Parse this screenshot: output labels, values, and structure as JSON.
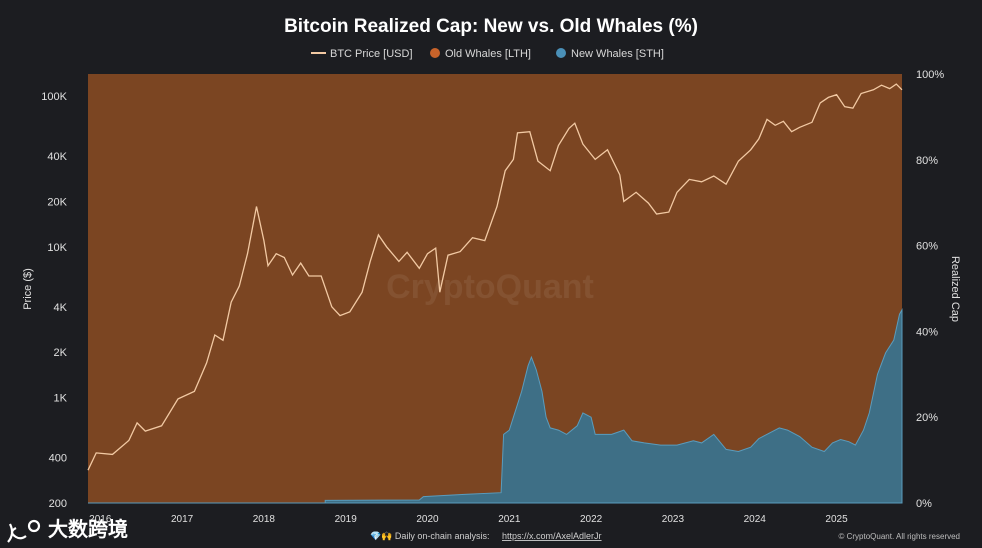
{
  "chart_data": {
    "type": "area",
    "title": "Bitcoin Realized Cap: New vs. Old Whales (%)",
    "legend": [
      {
        "label": "BTC Price [USD]",
        "color": "#f2c9a3",
        "kind": "line"
      },
      {
        "label": "Old Whales [LTH]",
        "color": "#c8632a",
        "kind": "dot"
      },
      {
        "label": "New Whales [STH]",
        "color": "#4a90b8",
        "kind": "dot"
      }
    ],
    "xlabel": "",
    "x_ticks": [
      "2016",
      "2017",
      "2018",
      "2019",
      "2020",
      "2021",
      "2022",
      "2023",
      "2024",
      "2025"
    ],
    "x_range": [
      2015.9,
      2025.85
    ],
    "y_left": {
      "label": "Price ($)",
      "scale": "log",
      "range": [
        200,
        140000
      ],
      "ticks": [
        {
          "v": 200,
          "label": "200"
        },
        {
          "v": 400,
          "label": "400"
        },
        {
          "v": 1000,
          "label": "1K"
        },
        {
          "v": 2000,
          "label": "2K"
        },
        {
          "v": 4000,
          "label": "4K"
        },
        {
          "v": 10000,
          "label": "10K"
        },
        {
          "v": 20000,
          "label": "20K"
        },
        {
          "v": 40000,
          "label": "40K"
        },
        {
          "v": 100000,
          "label": "100K"
        }
      ]
    },
    "y_right": {
      "label": "Realized Cap",
      "range": [
        0,
        100
      ],
      "ticks": [
        {
          "v": 0,
          "label": "0%"
        },
        {
          "v": 20,
          "label": "20%"
        },
        {
          "v": 40,
          "label": "40%"
        },
        {
          "v": 60,
          "label": "60%"
        },
        {
          "v": 80,
          "label": "80%"
        },
        {
          "v": 100,
          "label": "100%"
        }
      ]
    },
    "series": [
      {
        "name": "BTC Price [USD]",
        "axis": "left",
        "points": [
          [
            2015.9,
            330
          ],
          [
            2016.0,
            430
          ],
          [
            2016.2,
            420
          ],
          [
            2016.4,
            520
          ],
          [
            2016.5,
            680
          ],
          [
            2016.6,
            600
          ],
          [
            2016.8,
            650
          ],
          [
            2017.0,
            980
          ],
          [
            2017.2,
            1100
          ],
          [
            2017.35,
            1700
          ],
          [
            2017.45,
            2600
          ],
          [
            2017.55,
            2400
          ],
          [
            2017.65,
            4300
          ],
          [
            2017.75,
            5500
          ],
          [
            2017.85,
            9000
          ],
          [
            2017.96,
            18500
          ],
          [
            2018.05,
            11000
          ],
          [
            2018.1,
            7500
          ],
          [
            2018.2,
            9000
          ],
          [
            2018.3,
            8500
          ],
          [
            2018.4,
            6500
          ],
          [
            2018.5,
            7800
          ],
          [
            2018.6,
            6400
          ],
          [
            2018.75,
            6400
          ],
          [
            2018.88,
            4000
          ],
          [
            2018.98,
            3500
          ],
          [
            2019.1,
            3700
          ],
          [
            2019.25,
            5000
          ],
          [
            2019.35,
            8000
          ],
          [
            2019.45,
            12000
          ],
          [
            2019.55,
            10000
          ],
          [
            2019.7,
            8000
          ],
          [
            2019.8,
            9200
          ],
          [
            2019.95,
            7200
          ],
          [
            2020.05,
            9000
          ],
          [
            2020.15,
            9800
          ],
          [
            2020.2,
            5000
          ],
          [
            2020.3,
            8800
          ],
          [
            2020.45,
            9300
          ],
          [
            2020.6,
            11500
          ],
          [
            2020.75,
            11000
          ],
          [
            2020.9,
            18500
          ],
          [
            2021.0,
            32000
          ],
          [
            2021.1,
            38000
          ],
          [
            2021.15,
            57000
          ],
          [
            2021.3,
            58000
          ],
          [
            2021.4,
            37000
          ],
          [
            2021.55,
            32000
          ],
          [
            2021.65,
            47000
          ],
          [
            2021.78,
            61000
          ],
          [
            2021.85,
            66000
          ],
          [
            2021.95,
            48000
          ],
          [
            2022.1,
            38000
          ],
          [
            2022.25,
            44000
          ],
          [
            2022.4,
            30000
          ],
          [
            2022.45,
            20000
          ],
          [
            2022.6,
            23000
          ],
          [
            2022.75,
            19500
          ],
          [
            2022.85,
            16500
          ],
          [
            2023.0,
            17000
          ],
          [
            2023.1,
            23000
          ],
          [
            2023.25,
            28000
          ],
          [
            2023.4,
            27000
          ],
          [
            2023.55,
            29500
          ],
          [
            2023.7,
            26000
          ],
          [
            2023.85,
            37000
          ],
          [
            2024.0,
            44000
          ],
          [
            2024.1,
            52000
          ],
          [
            2024.2,
            70000
          ],
          [
            2024.3,
            64000
          ],
          [
            2024.4,
            68000
          ],
          [
            2024.5,
            58000
          ],
          [
            2024.6,
            62000
          ],
          [
            2024.75,
            67000
          ],
          [
            2024.85,
            90000
          ],
          [
            2024.95,
            98000
          ],
          [
            2025.05,
            102000
          ],
          [
            2025.15,
            85000
          ],
          [
            2025.25,
            83000
          ],
          [
            2025.35,
            104000
          ],
          [
            2025.5,
            110000
          ],
          [
            2025.6,
            118000
          ],
          [
            2025.7,
            112000
          ],
          [
            2025.78,
            120000
          ],
          [
            2025.85,
            110000
          ]
        ]
      },
      {
        "name": "Old Whales [LTH]",
        "axis": "right",
        "note": "complement of New Whales share (fills area above)"
      },
      {
        "name": "New Whales [STH]",
        "axis": "right",
        "points": [
          [
            2015.9,
            0
          ],
          [
            2018.8,
            0
          ],
          [
            2018.8,
            0.6
          ],
          [
            2019.95,
            0.7
          ],
          [
            2020.0,
            1.5
          ],
          [
            2020.5,
            2.0
          ],
          [
            2020.95,
            2.4
          ],
          [
            2020.98,
            16
          ],
          [
            2021.05,
            17
          ],
          [
            2021.1,
            20
          ],
          [
            2021.2,
            26
          ],
          [
            2021.28,
            32
          ],
          [
            2021.32,
            34
          ],
          [
            2021.38,
            31
          ],
          [
            2021.45,
            26
          ],
          [
            2021.5,
            20
          ],
          [
            2021.55,
            17.5
          ],
          [
            2021.65,
            17
          ],
          [
            2021.75,
            16
          ],
          [
            2021.88,
            18
          ],
          [
            2021.95,
            21
          ],
          [
            2022.05,
            20
          ],
          [
            2022.1,
            16
          ],
          [
            2022.3,
            16
          ],
          [
            2022.45,
            17
          ],
          [
            2022.55,
            14.5
          ],
          [
            2022.7,
            14
          ],
          [
            2022.9,
            13.5
          ],
          [
            2023.1,
            13.5
          ],
          [
            2023.3,
            14.5
          ],
          [
            2023.4,
            14
          ],
          [
            2023.55,
            16
          ],
          [
            2023.7,
            12.5
          ],
          [
            2023.85,
            12
          ],
          [
            2024.0,
            13
          ],
          [
            2024.1,
            15
          ],
          [
            2024.25,
            16.5
          ],
          [
            2024.35,
            17.5
          ],
          [
            2024.45,
            17
          ],
          [
            2024.6,
            15.5
          ],
          [
            2024.75,
            13
          ],
          [
            2024.9,
            12
          ],
          [
            2025.0,
            14
          ],
          [
            2025.1,
            14.8
          ],
          [
            2025.2,
            14.3
          ],
          [
            2025.28,
            13.5
          ],
          [
            2025.38,
            17
          ],
          [
            2025.45,
            21
          ],
          [
            2025.55,
            30
          ],
          [
            2025.65,
            35
          ],
          [
            2025.75,
            38
          ],
          [
            2025.82,
            44
          ],
          [
            2025.85,
            45
          ]
        ]
      }
    ],
    "watermark": "CryptoQuant"
  },
  "footer": {
    "prefix": "💎🙌 Daily on-chain analysis:",
    "link": "https://x.com/AxelAdlerJr",
    "copyright": "© CryptoQuant. All rights reserved"
  },
  "logo": {
    "text": "大数跨境",
    "icon": "kc-logo-icon"
  }
}
